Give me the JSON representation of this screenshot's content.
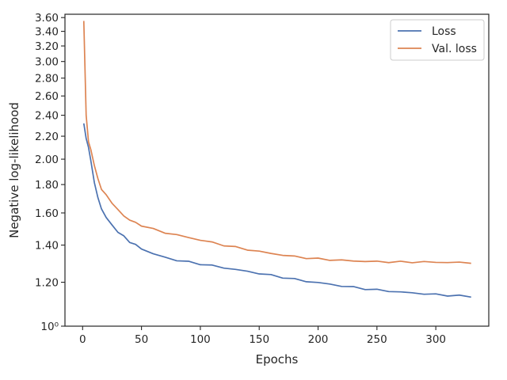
{
  "chart_data": {
    "type": "line",
    "title": "",
    "xlabel": "Epochs",
    "ylabel": "Negative log-likelihood",
    "y_scale": "log",
    "xlim": [
      -15,
      345
    ],
    "ylim": [
      1.0,
      3.65
    ],
    "grid": false,
    "legend": {
      "placement": "top-right",
      "entries": [
        "Loss",
        "Val. loss"
      ]
    },
    "x_ticks": [
      0,
      50,
      100,
      150,
      200,
      250,
      300
    ],
    "x_tick_labels": [
      "0",
      "50",
      "100",
      "150",
      "200",
      "250",
      "300"
    ],
    "y_ticks": [
      1.0,
      1.2,
      1.4,
      1.6,
      1.8,
      2.0,
      2.2,
      2.4,
      2.6,
      2.8,
      3.0,
      3.2,
      3.4,
      3.6
    ],
    "y_tick_labels": [
      "10⁰",
      "1.20",
      "1.40",
      "1.60",
      "1.80",
      "2.00",
      "2.20",
      "2.40",
      "2.60",
      "2.80",
      "3.00",
      "3.20",
      "3.40",
      "3.60"
    ],
    "x": [
      1,
      3,
      5,
      7,
      10,
      13,
      16,
      20,
      25,
      30,
      35,
      40,
      45,
      50,
      60,
      70,
      80,
      90,
      100,
      110,
      120,
      130,
      140,
      150,
      160,
      170,
      180,
      190,
      200,
      210,
      220,
      230,
      240,
      250,
      260,
      270,
      280,
      290,
      300,
      310,
      320,
      330
    ],
    "series": [
      {
        "name": "Loss",
        "color": "#4c72b0",
        "values": [
          2.32,
          2.18,
          2.1,
          1.98,
          1.82,
          1.7,
          1.63,
          1.57,
          1.52,
          1.48,
          1.45,
          1.42,
          1.4,
          1.38,
          1.35,
          1.33,
          1.315,
          1.305,
          1.295,
          1.285,
          1.275,
          1.265,
          1.255,
          1.245,
          1.235,
          1.225,
          1.215,
          1.205,
          1.198,
          1.19,
          1.182,
          1.175,
          1.168,
          1.162,
          1.157,
          1.152,
          1.148,
          1.144,
          1.14,
          1.137,
          1.134,
          1.128
        ]
      },
      {
        "name": "Val. loss",
        "color": "#dd8452",
        "values": [
          3.55,
          2.4,
          2.15,
          2.08,
          1.95,
          1.84,
          1.77,
          1.72,
          1.67,
          1.62,
          1.58,
          1.555,
          1.535,
          1.52,
          1.495,
          1.475,
          1.46,
          1.445,
          1.43,
          1.415,
          1.4,
          1.387,
          1.375,
          1.363,
          1.353,
          1.343,
          1.335,
          1.328,
          1.322,
          1.318,
          1.314,
          1.311,
          1.309,
          1.307,
          1.306,
          1.305,
          1.305,
          1.305,
          1.304,
          1.303,
          1.302,
          1.298
        ]
      }
    ]
  }
}
